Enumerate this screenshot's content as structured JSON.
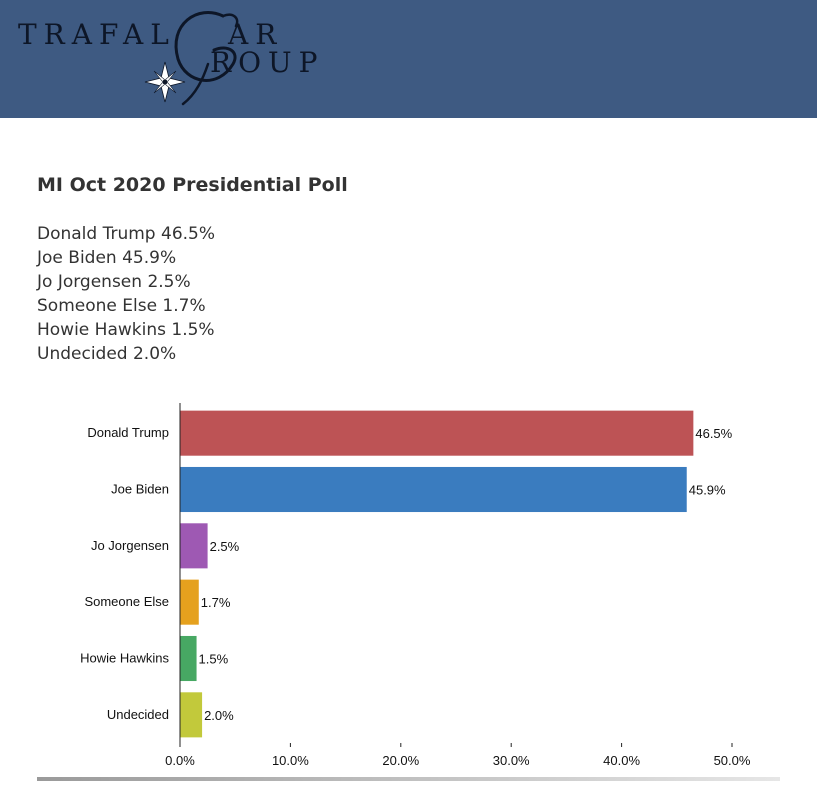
{
  "header": {
    "logo": {
      "part1": "TRAFAL",
      "part2": "AR",
      "part3": "ROUP",
      "script_letters": "GG",
      "colors": {
        "background": "#3e5a82",
        "ink": "#0d1627"
      }
    }
  },
  "poll": {
    "title": "MI Oct 2020 Presidential Poll",
    "results": [
      "Donald Trump 46.5%",
      "Joe Biden 45.9%",
      "Jo Jorgensen 2.5%",
      "Someone Else 1.7%",
      "Howie Hawkins 1.5%",
      "Undecided 2.0%"
    ]
  },
  "chart_data": {
    "type": "bar",
    "orientation": "horizontal",
    "categories": [
      "Donald Trump",
      "Joe Biden",
      "Jo Jorgensen",
      "Someone Else",
      "Howie Hawkins",
      "Undecided"
    ],
    "values": [
      46.5,
      45.9,
      2.5,
      1.7,
      1.5,
      2.0
    ],
    "data_labels": [
      "46.5%",
      "45.9%",
      "2.5%",
      "1.7%",
      "1.5%",
      "2.0%"
    ],
    "colors": [
      "#bd5355",
      "#3a7cbf",
      "#9e59b3",
      "#e5a11e",
      "#47a863",
      "#c2c93b"
    ],
    "xlim": [
      0,
      50
    ],
    "xticks": [
      "0.0%",
      "10.0%",
      "20.0%",
      "30.0%",
      "40.0%",
      "50.0%"
    ],
    "xtick_values": [
      0,
      10,
      20,
      30,
      40,
      50
    ],
    "title": "",
    "xlabel": "",
    "ylabel": "",
    "grid": false
  }
}
